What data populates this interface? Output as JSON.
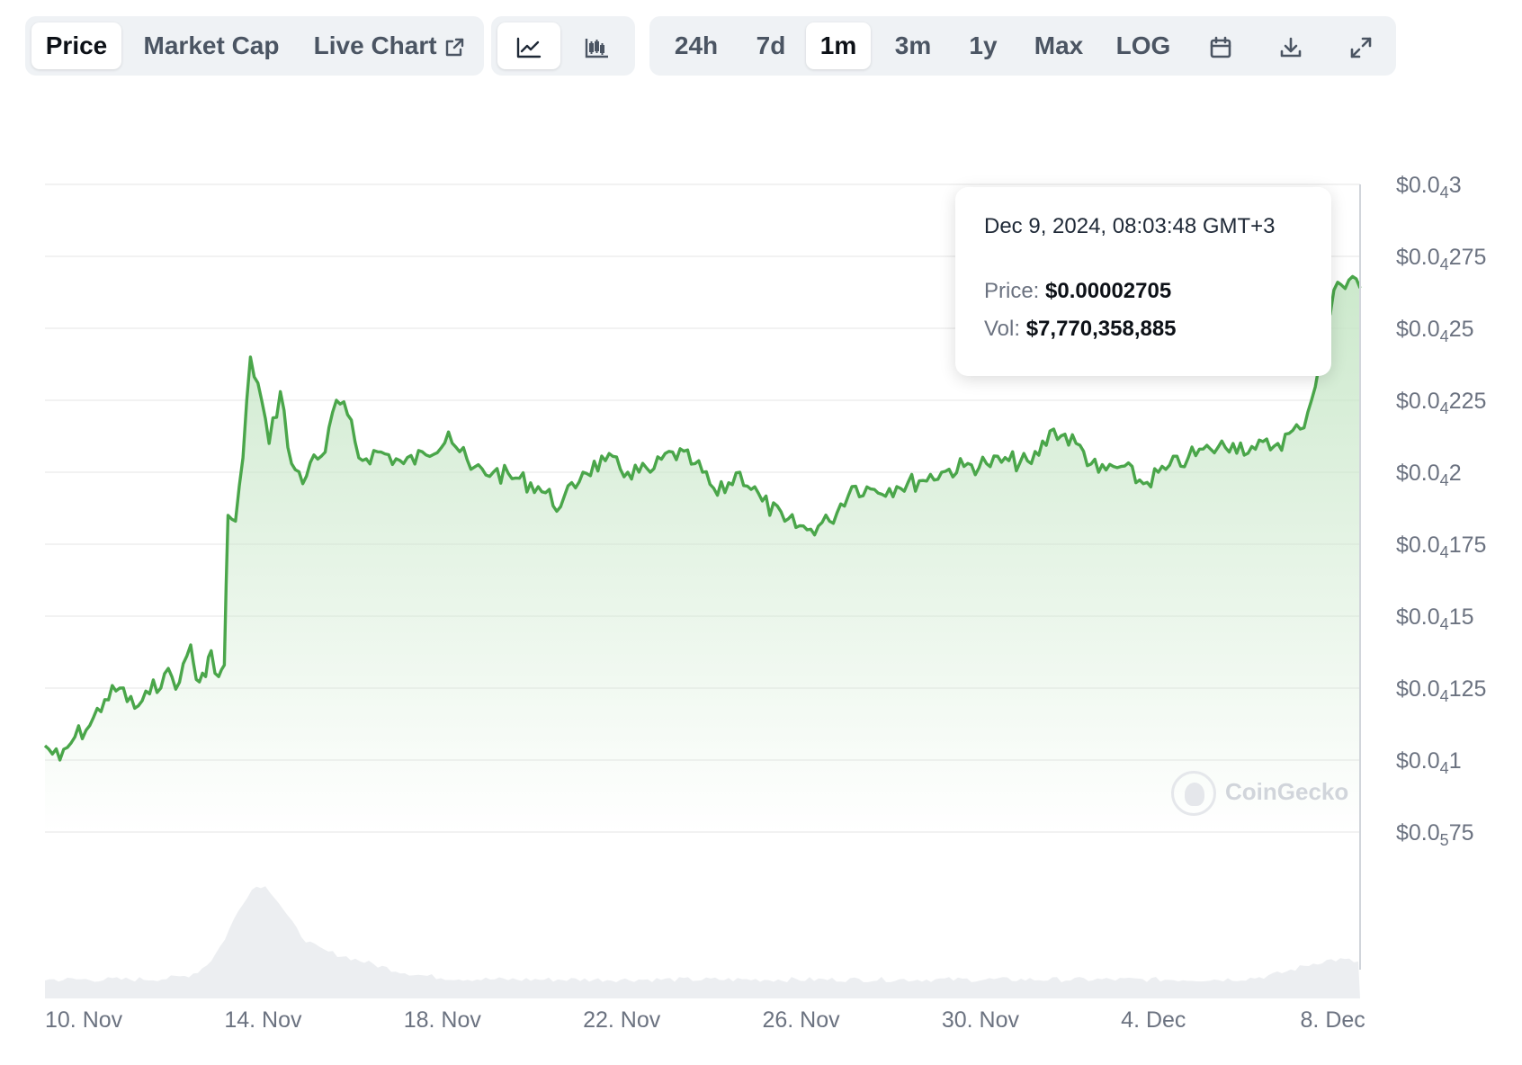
{
  "toolbar": {
    "view_tabs": [
      {
        "label": "Price",
        "active": true
      },
      {
        "label": "Market Cap",
        "active": false
      },
      {
        "label": "Live Chart",
        "active": false,
        "icon": "external-link-icon"
      }
    ],
    "chart_type_buttons": [
      {
        "icon": "line-chart-icon",
        "active": true
      },
      {
        "icon": "candlestick-chart-icon",
        "active": false
      }
    ],
    "ranges": [
      {
        "label": "24h",
        "active": false
      },
      {
        "label": "7d",
        "active": false
      },
      {
        "label": "1m",
        "active": true
      },
      {
        "label": "3m",
        "active": false
      },
      {
        "label": "1y",
        "active": false
      },
      {
        "label": "Max",
        "active": false
      },
      {
        "label": "LOG",
        "active": false
      }
    ],
    "tool_icons": [
      "calendar-icon",
      "download-icon",
      "fullscreen-icon"
    ]
  },
  "tooltip": {
    "date": "Dec 9, 2024, 08:03:48 GMT+3",
    "price_label": "Price:",
    "price_value": "$0.00002705",
    "vol_label": "Vol:",
    "vol_value": "$7,770,358,885"
  },
  "watermark": {
    "text": "CoinGecko"
  },
  "colors": {
    "line": "#4aa64a",
    "area_top": "#c6e6c6",
    "volume": "#e5e7eb",
    "grid": "#eeeeee",
    "axis_text": "#6b7280"
  },
  "chart_data": {
    "type": "area",
    "x_axis": {
      "type": "date",
      "ticks": [
        {
          "date": "2024-11-10",
          "label": "10. Nov"
        },
        {
          "date": "2024-11-14",
          "label": "14. Nov"
        },
        {
          "date": "2024-11-18",
          "label": "18. Nov"
        },
        {
          "date": "2024-11-22",
          "label": "22. Nov"
        },
        {
          "date": "2024-11-26",
          "label": "26. Nov"
        },
        {
          "date": "2024-11-30",
          "label": "30. Nov"
        },
        {
          "date": "2024-12-04",
          "label": "4. Dec"
        },
        {
          "date": "2024-12-08",
          "label": "8. Dec"
        }
      ],
      "range": [
        "2024-11-10",
        "2024-12-09T08:00"
      ]
    },
    "y_axis": {
      "ticks": [
        {
          "value": 3e-05,
          "prefix": "$0.0",
          "sub": "4",
          "suffix": "3"
        },
        {
          "value": 2.75e-05,
          "prefix": "$0.0",
          "sub": "4",
          "suffix": "275"
        },
        {
          "value": 2.5e-05,
          "prefix": "$0.0",
          "sub": "4",
          "suffix": "25"
        },
        {
          "value": 2.25e-05,
          "prefix": "$0.0",
          "sub": "4",
          "suffix": "225"
        },
        {
          "value": 2e-05,
          "prefix": "$0.0",
          "sub": "4",
          "suffix": "2"
        },
        {
          "value": 1.75e-05,
          "prefix": "$0.0",
          "sub": "4",
          "suffix": "175"
        },
        {
          "value": 1.5e-05,
          "prefix": "$0.0",
          "sub": "4",
          "suffix": "15"
        },
        {
          "value": 1.25e-05,
          "prefix": "$0.0",
          "sub": "4",
          "suffix": "125"
        },
        {
          "value": 1e-05,
          "prefix": "$0.0",
          "sub": "4",
          "suffix": "1"
        },
        {
          "value": 7.5e-06,
          "prefix": "$0.0",
          "sub": "5",
          "suffix": "75"
        }
      ],
      "range": [
        7.5e-06,
        3e-05
      ]
    },
    "grid": true,
    "series": [
      {
        "values": [
          [
            "2024-11-10T00:00",
            1.05e-05
          ],
          [
            "2024-11-10T08:00",
            1e-05
          ],
          [
            "2024-11-10T16:00",
            1.08e-05
          ],
          [
            "2024-11-11T00:00",
            1.12e-05
          ],
          [
            "2024-11-11T08:00",
            1.21e-05
          ],
          [
            "2024-11-11T16:00",
            1.25e-05
          ],
          [
            "2024-11-12T00:00",
            1.18e-05
          ],
          [
            "2024-11-12T08:00",
            1.23e-05
          ],
          [
            "2024-11-12T16:00",
            1.3e-05
          ],
          [
            "2024-11-13T00:00",
            1.27e-05
          ],
          [
            "2024-11-13T06:00",
            1.4e-05
          ],
          [
            "2024-11-13T09:00",
            1.28e-05
          ],
          [
            "2024-11-13T14:00",
            1.29e-05
          ],
          [
            "2024-11-13T17:00",
            1.38e-05
          ],
          [
            "2024-11-13T21:00",
            1.29e-05
          ],
          [
            "2024-11-14T00:00",
            1.33e-05
          ],
          [
            "2024-11-14T02:00",
            1.85e-05
          ],
          [
            "2024-11-14T06:00",
            1.83e-05
          ],
          [
            "2024-11-14T10:00",
            2.05e-05
          ],
          [
            "2024-11-14T14:00",
            2.4e-05
          ],
          [
            "2024-11-14T20:00",
            2.25e-05
          ],
          [
            "2024-11-15T00:00",
            2.1e-05
          ],
          [
            "2024-11-15T06:00",
            2.28e-05
          ],
          [
            "2024-11-15T12:00",
            2.03e-05
          ],
          [
            "2024-11-15T18:00",
            1.96e-05
          ],
          [
            "2024-11-16T00:00",
            2.06e-05
          ],
          [
            "2024-11-16T06:00",
            2.07e-05
          ],
          [
            "2024-11-16T12:00",
            2.25e-05
          ],
          [
            "2024-11-16T18:00",
            2.2e-05
          ],
          [
            "2024-11-17T00:00",
            2.05e-05
          ],
          [
            "2024-11-17T12:00",
            2.07e-05
          ],
          [
            "2024-11-18T00:00",
            2.03e-05
          ],
          [
            "2024-11-18T12:00",
            2.06e-05
          ],
          [
            "2024-11-19T00:00",
            2.14e-05
          ],
          [
            "2024-11-19T12:00",
            2.01e-05
          ],
          [
            "2024-11-20T00:00",
            2e-05
          ],
          [
            "2024-11-20T12:00",
            1.98e-05
          ],
          [
            "2024-11-21T00:00",
            1.95e-05
          ],
          [
            "2024-11-21T12:00",
            1.88e-05
          ],
          [
            "2024-11-22T00:00",
            2e-05
          ],
          [
            "2024-11-22T12:00",
            2.04e-05
          ],
          [
            "2024-11-23T00:00",
            2e-05
          ],
          [
            "2024-11-23T12:00",
            2e-05
          ],
          [
            "2024-11-24T00:00",
            2.07e-05
          ],
          [
            "2024-11-24T12:00",
            2.03e-05
          ],
          [
            "2024-11-25T00:00",
            1.92e-05
          ],
          [
            "2024-11-25T12:00",
            2e-05
          ],
          [
            "2024-11-26T00:00",
            1.9e-05
          ],
          [
            "2024-11-26T12:00",
            1.83e-05
          ],
          [
            "2024-11-27T00:00",
            1.8e-05
          ],
          [
            "2024-11-27T12:00",
            1.83e-05
          ],
          [
            "2024-11-28T00:00",
            1.95e-05
          ],
          [
            "2024-11-28T12:00",
            1.94e-05
          ],
          [
            "2024-11-29T00:00",
            1.95e-05
          ],
          [
            "2024-11-29T12:00",
            1.97e-05
          ],
          [
            "2024-11-30T00:00",
            2e-05
          ],
          [
            "2024-11-30T12:00",
            2.02e-05
          ],
          [
            "2024-12-01T00:00",
            2.03e-05
          ],
          [
            "2024-12-01T12:00",
            2.04e-05
          ],
          [
            "2024-12-02T00:00",
            2.03e-05
          ],
          [
            "2024-12-02T12:00",
            2.15e-05
          ],
          [
            "2024-12-03T00:00",
            2.1e-05
          ],
          [
            "2024-12-03T12:00",
            2e-05
          ],
          [
            "2024-12-04T00:00",
            2.02e-05
          ],
          [
            "2024-12-04T12:00",
            1.96e-05
          ],
          [
            "2024-12-05T00:00",
            2.01e-05
          ],
          [
            "2024-12-05T12:00",
            2.05e-05
          ],
          [
            "2024-12-06T00:00",
            2.08e-05
          ],
          [
            "2024-12-06T12:00",
            2.1e-05
          ],
          [
            "2024-12-07T00:00",
            2.08e-05
          ],
          [
            "2024-12-07T12:00",
            2.1e-05
          ],
          [
            "2024-12-08T00:00",
            2.15e-05
          ],
          [
            "2024-12-08T06:00",
            2.25e-05
          ],
          [
            "2024-12-08T12:00",
            2.45e-05
          ],
          [
            "2024-12-08T20:00",
            2.66e-05
          ],
          [
            "2024-12-09T04:00",
            2.68e-05
          ],
          [
            "2024-12-09T08:00",
            2.64e-05
          ]
        ]
      }
    ]
  }
}
